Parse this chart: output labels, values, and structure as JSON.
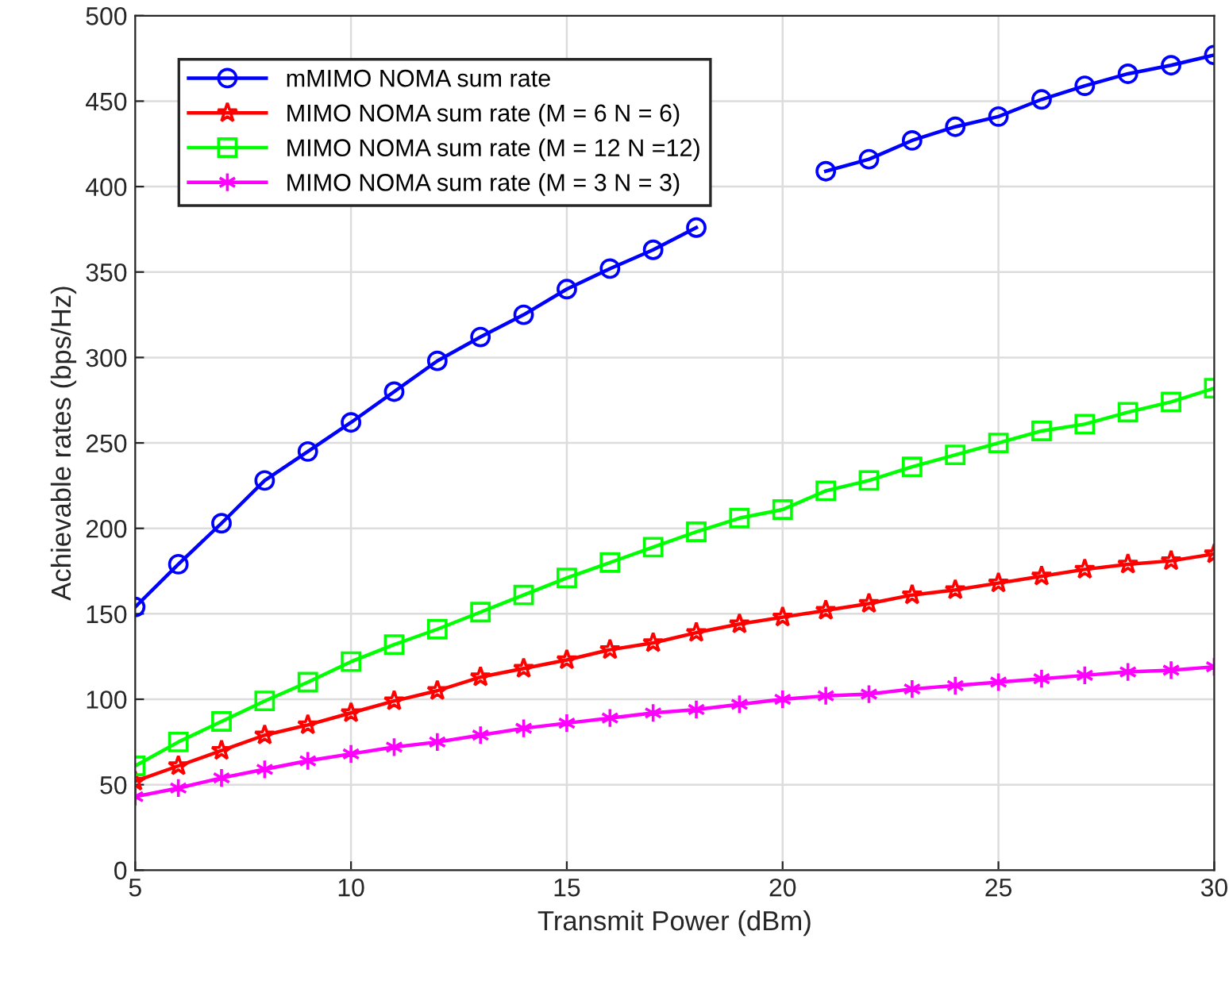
{
  "chart_data": {
    "type": "line",
    "xlabel": "Transmit Power (dBm)",
    "ylabel": "Achievable rates (bps/Hz)",
    "x": [
      5,
      6,
      7,
      8,
      9,
      10,
      11,
      12,
      13,
      14,
      15,
      16,
      17,
      18,
      19,
      20,
      21,
      22,
      23,
      24,
      25,
      26,
      27,
      28,
      29,
      30
    ],
    "series": [
      {
        "name": "mMIMO NOMA sum rate",
        "color": "#0000ff",
        "marker": "circle",
        "values": [
          154,
          179,
          203,
          228,
          245,
          262,
          280,
          298,
          312,
          325,
          340,
          352,
          363,
          376,
          null,
          null,
          409,
          416,
          427,
          435,
          441,
          451,
          459,
          466,
          471,
          477
        ]
      },
      {
        "name": "MIMO NOMA sum rate (M = 6 N = 6)",
        "color": "#ff0000",
        "marker": "star",
        "values": [
          52,
          61,
          70,
          79,
          85,
          92,
          99,
          105,
          113,
          118,
          123,
          129,
          133,
          139,
          144,
          148,
          152,
          156,
          161,
          164,
          168,
          172,
          176,
          179,
          181,
          185
        ]
      },
      {
        "name": "MIMO NOMA sum rate (M = 12 N =12)",
        "color": "#00ff00",
        "marker": "square",
        "values": [
          61,
          75,
          87,
          99,
          110,
          122,
          132,
          141,
          151,
          161,
          171,
          180,
          189,
          198,
          206,
          211,
          222,
          228,
          236,
          243,
          250,
          257,
          261,
          268,
          274,
          282
        ]
      },
      {
        "name": "MIMO NOMA sum rate (M = 3 N = 3)",
        "color": "#ff00ff",
        "marker": "cross",
        "values": [
          43,
          48,
          54,
          59,
          64,
          68,
          72,
          75,
          79,
          83,
          86,
          89,
          92,
          94,
          97,
          100,
          102,
          103,
          106,
          108,
          110,
          112,
          114,
          116,
          117,
          119
        ]
      }
    ],
    "xlim": [
      5,
      30
    ],
    "xticks": [
      5,
      10,
      15,
      20,
      25,
      30
    ],
    "ylim": [
      0,
      500
    ],
    "yticks": [
      0,
      50,
      100,
      150,
      200,
      250,
      300,
      350,
      400,
      450,
      500
    ],
    "grid": true,
    "legend": "top left",
    "line_style": "solid"
  }
}
